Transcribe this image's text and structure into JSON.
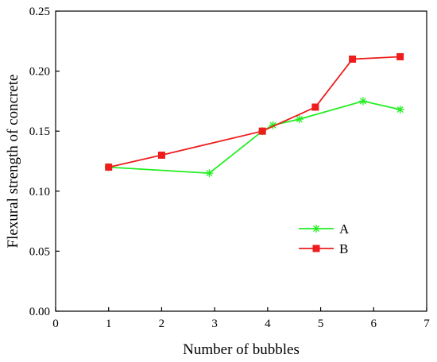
{
  "chart_data": {
    "type": "line",
    "title": "",
    "xlabel": "Number of bubbles",
    "ylabel": "Flexural strength of concrete",
    "xlim": [
      0,
      7
    ],
    "ylim": [
      0.0,
      0.25
    ],
    "xticks": [
      "0",
      "1",
      "2",
      "3",
      "4",
      "5",
      "6",
      "7"
    ],
    "yticks": [
      "0.00",
      "0.05",
      "0.10",
      "0.15",
      "0.20",
      "0.25"
    ],
    "grid": false,
    "legend": "center-right",
    "series": [
      {
        "name": "A",
        "color": "#22ee22",
        "marker": "asterisk",
        "x": [
          1,
          2.9,
          3.9,
          4.1,
          4.6,
          5.8,
          6.5
        ],
        "y": [
          0.12,
          0.115,
          0.15,
          0.155,
          0.16,
          0.175,
          0.168
        ]
      },
      {
        "name": "B",
        "color": "#ee1c1c",
        "marker": "square",
        "x": [
          1,
          2,
          3.9,
          4.9,
          5.6,
          6.5
        ],
        "y": [
          0.12,
          0.13,
          0.15,
          0.17,
          0.21,
          0.212
        ]
      }
    ]
  }
}
